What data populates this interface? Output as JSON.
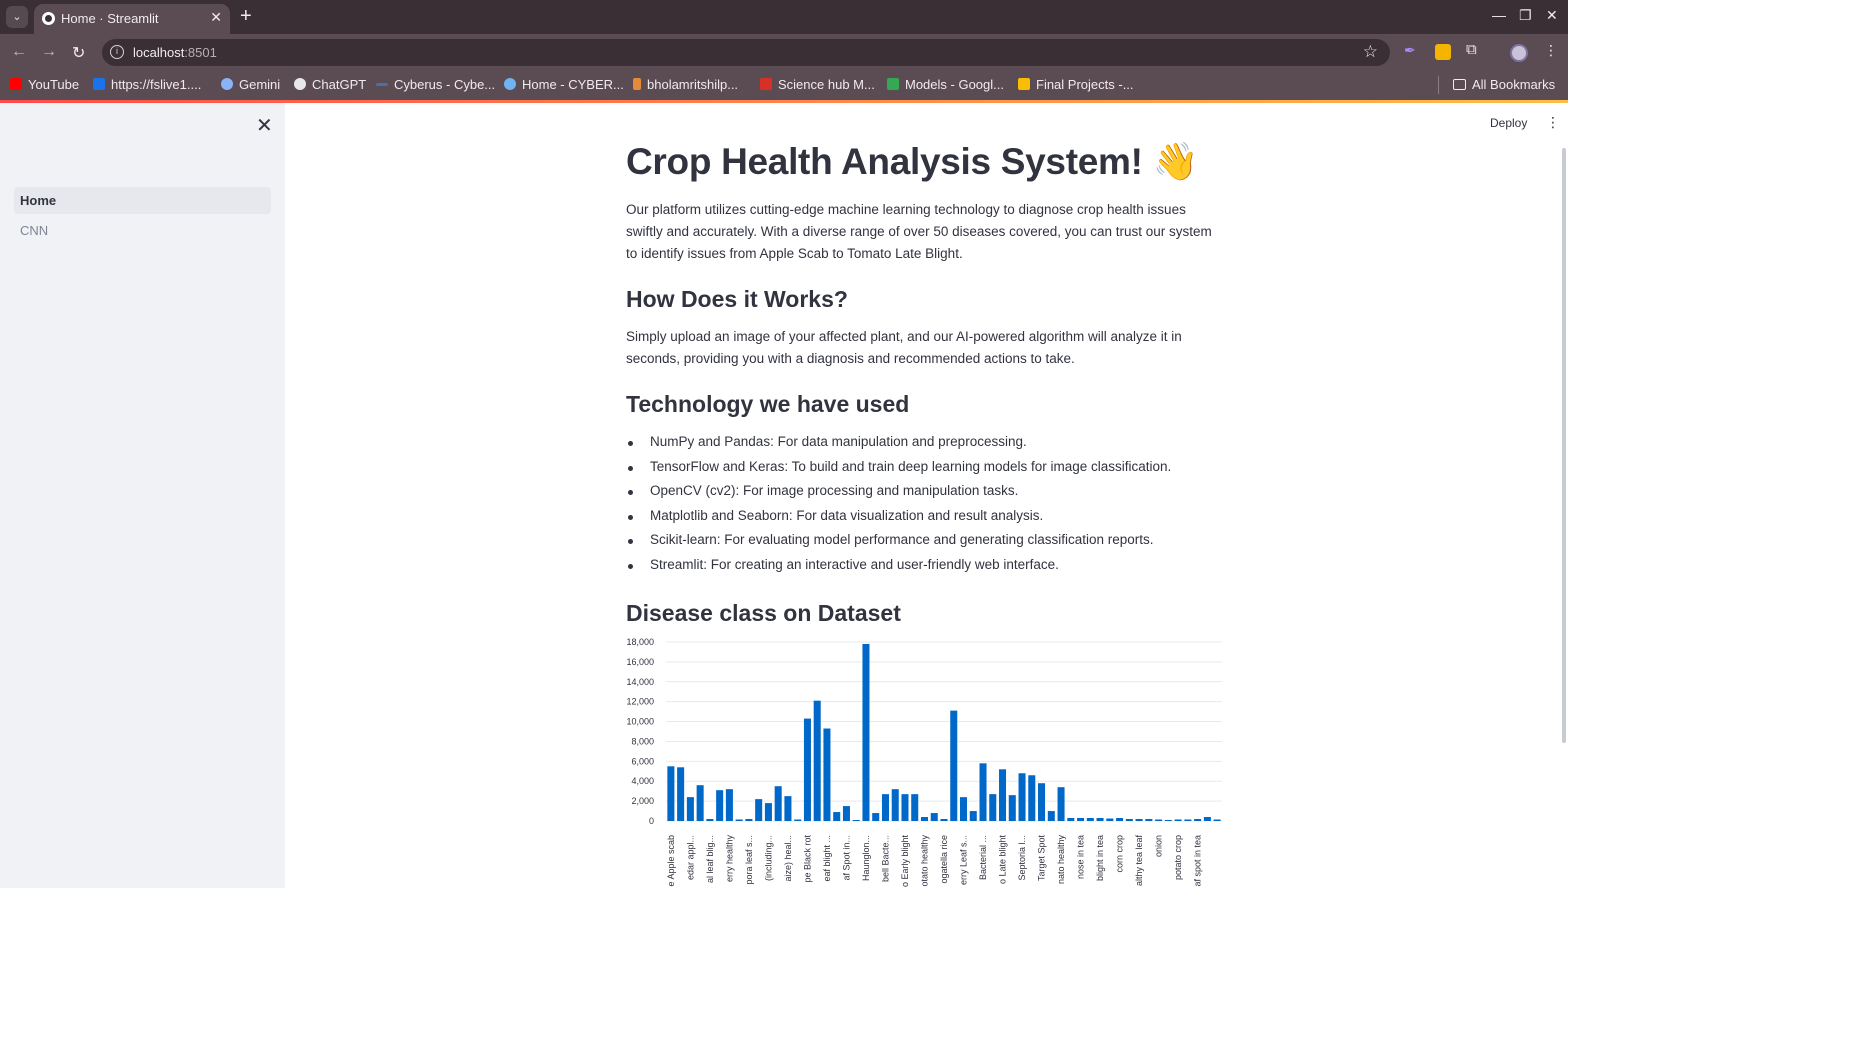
{
  "browser": {
    "tab_title": "Home · Streamlit",
    "url_host": "localhost",
    "url_port": ":8501",
    "bookmarks": [
      {
        "label": "YouTube",
        "color": "#ff0000"
      },
      {
        "label": "https://fslive1....",
        "color": "#1a73e8"
      },
      {
        "label": "Gemini",
        "color": "#8ab4f8"
      },
      {
        "label": "ChatGPT",
        "color": "#e8e8e8"
      },
      {
        "label": "Cyberus - Cybe...",
        "color": "#4a6fa5"
      },
      {
        "label": "Home - CYBER...",
        "color": "#6fb3f2"
      },
      {
        "label": "bholamritshilp...",
        "color": "#e58a3a"
      },
      {
        "label": "Science hub M...",
        "color": "#d93025"
      },
      {
        "label": "Models - Googl...",
        "color": "#34a853"
      },
      {
        "label": "Final Projects -...",
        "color": "#fbbc04"
      }
    ],
    "all_bookmarks": "All Bookmarks"
  },
  "sidebar": {
    "items": [
      {
        "label": "Home",
        "active": true
      },
      {
        "label": "CNN",
        "active": false
      }
    ]
  },
  "header": {
    "deploy_label": "Deploy"
  },
  "main": {
    "title": "Crop Health Analysis System! 👋",
    "intro": "Our platform utilizes cutting-edge machine learning technology to diagnose crop health issues swiftly and accurately. With a diverse range of over 50 diseases covered, you can trust our system to identify issues from Apple Scab to Tomato Late Blight.",
    "how_heading": "How Does it Works?",
    "how_text": "Simply upload an image of your affected plant, and our AI-powered algorithm will analyze it in seconds, providing you with a diagnosis and recommended actions to take.",
    "tech_heading": "Technology we have used",
    "tech_items": [
      "NumPy and Pandas: For data manipulation and preprocessing.",
      "TensorFlow and Keras: To build and train deep learning models for image classification.",
      "OpenCV (cv2): For image processing and manipulation tasks.",
      "Matplotlib and Seaborn: For data visualization and result analysis.",
      "Scikit-learn: For evaluating model performance and generating classification reports.",
      "Streamlit: For creating an interactive and user-friendly web interface."
    ],
    "dataset_heading": "Disease class on Dataset"
  },
  "chart_data": {
    "type": "bar",
    "bar_color": "#0068c9",
    "ylim": [
      0,
      18000
    ],
    "yticks": [
      0,
      2000,
      4000,
      6000,
      8000,
      10000,
      12000,
      14000,
      16000,
      18000
    ],
    "ytick_labels": [
      "0",
      "2,000",
      "4,000",
      "6,000",
      "8,000",
      "10,000",
      "12,000",
      "14,000",
      "16,000",
      "18,000"
    ],
    "values": [
      5500,
      5400,
      2400,
      3600,
      200,
      3100,
      3200,
      150,
      200,
      2200,
      1800,
      3500,
      2500,
      150,
      10300,
      12100,
      9300,
      900,
      1500,
      100,
      17800,
      800,
      2700,
      3200,
      2700,
      2700,
      400,
      800,
      200,
      11100,
      2400,
      1000,
      5800,
      2700,
      5200,
      2600,
      4800,
      4600,
      3800,
      1000,
      3400,
      300,
      300,
      300,
      300,
      250,
      300,
      200,
      200,
      200,
      150,
      100,
      150,
      150,
      200,
      400,
      150
    ],
    "visible_tick_labels": [
      {
        "index": 0,
        "label": "e Apple scab"
      },
      {
        "index": 2,
        "label": "edar appl..."
      },
      {
        "index": 4,
        "label": "al leaf blig..."
      },
      {
        "index": 6,
        "label": "erry healthy"
      },
      {
        "index": 8,
        "label": "pora leaf s..."
      },
      {
        "index": 10,
        "label": "(including..."
      },
      {
        "index": 12,
        "label": "aize) heal..."
      },
      {
        "index": 14,
        "label": "pe Black rot"
      },
      {
        "index": 16,
        "label": "eaf blight ..."
      },
      {
        "index": 18,
        "label": "af Spot in..."
      },
      {
        "index": 20,
        "label": "Haunglon..."
      },
      {
        "index": 22,
        "label": "bell Bacte..."
      },
      {
        "index": 24,
        "label": "o Early blight"
      },
      {
        "index": 26,
        "label": "otato healthy"
      },
      {
        "index": 28,
        "label": "ogatella rice"
      },
      {
        "index": 30,
        "label": "erry Leaf s..."
      },
      {
        "index": 32,
        "label": "Bacterial ..."
      },
      {
        "index": 34,
        "label": "o Late blight"
      },
      {
        "index": 36,
        "label": "Septoria l..."
      },
      {
        "index": 38,
        "label": "Target Spot"
      },
      {
        "index": 40,
        "label": "nato healthy"
      },
      {
        "index": 42,
        "label": "nose in tea"
      },
      {
        "index": 44,
        "label": "blight in tea"
      },
      {
        "index": 46,
        "label": "corn crop"
      },
      {
        "index": 48,
        "label": "althy tea leaf"
      },
      {
        "index": 50,
        "label": "onion"
      },
      {
        "index": 52,
        "label": "potato crop"
      },
      {
        "index": 54,
        "label": "af spot in tea"
      }
    ]
  }
}
